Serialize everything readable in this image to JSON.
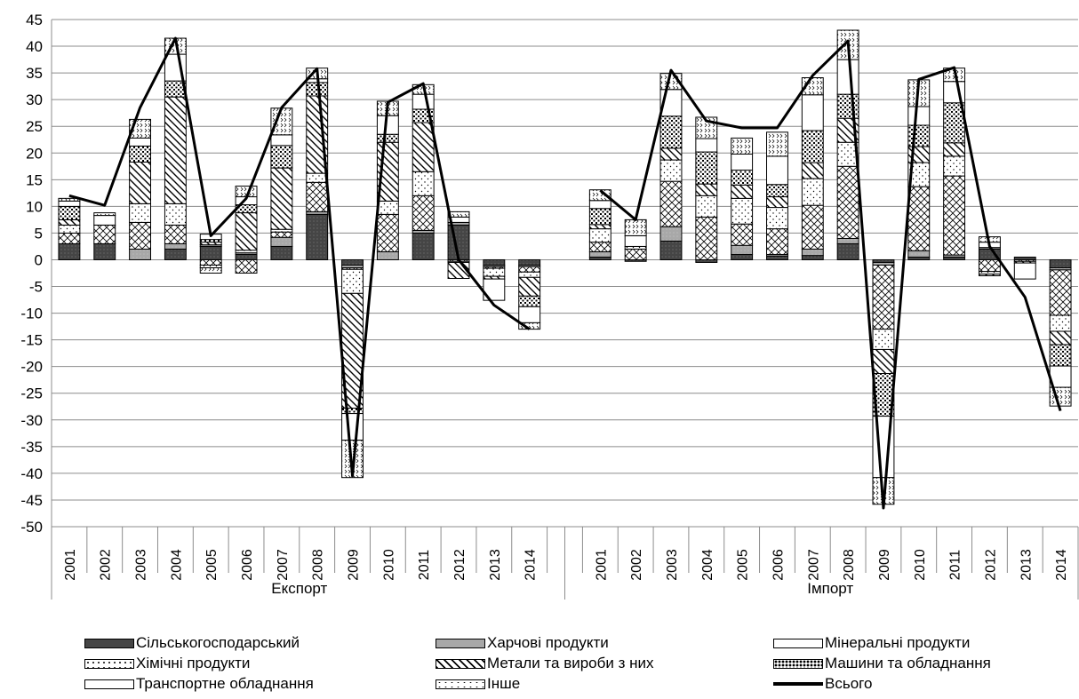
{
  "chart_data": {
    "type": "bar",
    "stacked": true,
    "grid": true,
    "legend_position": "bottom",
    "ylim": [
      -50,
      45
    ],
    "yticks": [
      45,
      40,
      35,
      30,
      25,
      20,
      15,
      10,
      5,
      0,
      -5,
      -10,
      -15,
      -20,
      -25,
      -30,
      -35,
      -40,
      -45,
      -50
    ],
    "groups": [
      {
        "label": "Експорт",
        "categories": [
          "2001",
          "2002",
          "2003",
          "2004",
          "2005",
          "2006",
          "2007",
          "2008",
          "2009",
          "2010",
          "2011",
          "2012",
          "2013",
          "2014"
        ]
      },
      {
        "label": "Імпорт",
        "categories": [
          "2001",
          "2002",
          "2003",
          "2004",
          "2005",
          "2006",
          "2007",
          "2008",
          "2009",
          "2010",
          "2011",
          "2012",
          "2013",
          "2014"
        ]
      }
    ],
    "series": [
      {
        "name": "Сільськогосподарський",
        "pattern": "dark",
        "values": [
          [
            3,
            3,
            0,
            2,
            2.5,
            1,
            2.5,
            8.5,
            -1,
            0,
            5,
            6.5,
            -1,
            -1
          ],
          [
            0.5,
            -0.3,
            3.5,
            -0.5,
            1,
            0.7,
            0.8,
            3,
            -0.5,
            0.5,
            0.5,
            2,
            0.5,
            -1.5
          ]
        ]
      },
      {
        "name": "Харчові продукти",
        "pattern": "gray",
        "values": [
          [
            0,
            0,
            2,
            1,
            0.3,
            0.3,
            1.7,
            0.5,
            -0.5,
            1.5,
            0.5,
            0.5,
            -0.3,
            -0.3
          ],
          [
            1,
            0,
            2.7,
            0,
            1.7,
            0.3,
            1.2,
            1,
            -0.5,
            1.2,
            0.4,
            0.3,
            0,
            -0.4
          ]
        ]
      },
      {
        "name": "Мінеральні продукти",
        "pattern": "cross",
        "values": [
          [
            2,
            3.5,
            5,
            3.5,
            -1,
            -2.5,
            1,
            5.5,
            -0.3,
            7,
            6.5,
            -0.3,
            -0.3,
            -1
          ],
          [
            1.8,
            2,
            8.5,
            8,
            4,
            4.8,
            8.2,
            13.5,
            -12,
            12,
            14.8,
            -2.2,
            -0.3,
            -8.5
          ]
        ]
      },
      {
        "name": "Хімічні продукти",
        "pattern": "dots",
        "values": [
          [
            1.5,
            0,
            3.5,
            4,
            -0.5,
            0.5,
            0.5,
            1.7,
            -4.5,
            2.5,
            4.5,
            -0.2,
            -1.5,
            -1
          ],
          [
            2.5,
            0.5,
            4,
            4,
            4.8,
            4,
            5,
            4.5,
            -3.8,
            4.5,
            3.7,
            -0.5,
            0,
            -3
          ]
        ]
      },
      {
        "name": "Метали та вироби з них",
        "pattern": "diag",
        "values": [
          [
            1,
            0,
            7.8,
            20,
            0.5,
            7,
            11.5,
            14.5,
            -21.5,
            11,
            9.2,
            -3,
            -0.5,
            -3.5
          ],
          [
            0.8,
            0,
            2.2,
            2.2,
            2.5,
            2,
            3,
            4.5,
            -4.5,
            3,
            2.5,
            -0.3,
            -0.3,
            -2.5
          ]
        ]
      },
      {
        "name": "Машини та обладнання",
        "pattern": "brick",
        "values": [
          [
            2.5,
            0,
            3,
            3,
            0.5,
            1.5,
            4.2,
            2.5,
            -1,
            1.5,
            2.5,
            0,
            0,
            -2
          ],
          [
            3,
            0,
            6,
            6,
            2.8,
            2.3,
            6,
            4.5,
            -8,
            4,
            7.5,
            0,
            0,
            -4
          ]
        ]
      },
      {
        "name": "Транспортне обладнання",
        "pattern": "white",
        "values": [
          [
            1,
            1.8,
            1.5,
            5,
            1,
            1.5,
            2,
            0.7,
            -5,
            3.5,
            2.8,
            1,
            -4,
            -3
          ],
          [
            1.5,
            2,
            5,
            2.5,
            3,
            5.3,
            6.7,
            6.5,
            -11.5,
            3.5,
            4,
            1,
            -3,
            -4
          ]
        ]
      },
      {
        "name": "Інше",
        "pattern": "chevron",
        "values": [
          [
            0.5,
            0.5,
            3.5,
            3,
            -1,
            2,
            5,
            2,
            -7,
            2.7,
            1.8,
            1,
            0,
            -1.2
          ],
          [
            2,
            3,
            3,
            4,
            3,
            4.5,
            3.2,
            5.5,
            -5,
            5,
            2.5,
            1,
            0,
            -3.5
          ]
        ]
      }
    ],
    "total": {
      "name": "Всього",
      "values": [
        [
          12,
          10.2,
          28.5,
          41.5,
          4.5,
          11.5,
          28.5,
          35.8,
          -40.5,
          29.5,
          33,
          0,
          -8.5,
          -13
        ],
        [
          13,
          7.5,
          35.5,
          26,
          24.7,
          24.7,
          34.5,
          41,
          -46.5,
          33.8,
          36,
          2.5,
          -7,
          -28.3
        ]
      ]
    }
  }
}
